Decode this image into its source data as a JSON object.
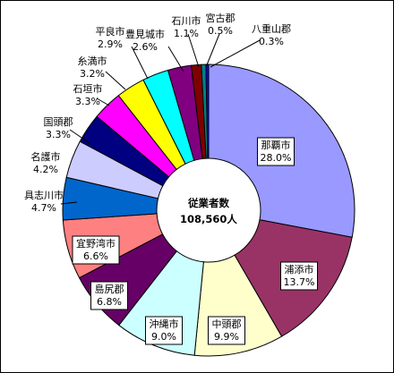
{
  "chart_data": {
    "type": "pie",
    "donut": true,
    "center_label": {
      "line1": "従業者数",
      "line2": "108,560人"
    },
    "slices": [
      {
        "name": "那覇市",
        "value": 28.0,
        "label": "28.0%",
        "color": "#9999ff"
      },
      {
        "name": "浦添市",
        "value": 13.7,
        "label": "13.7%",
        "color": "#993366"
      },
      {
        "name": "中頭郡",
        "value": 9.9,
        "label": "9.9%",
        "color": "#ffffcc"
      },
      {
        "name": "沖縄市",
        "value": 9.0,
        "label": "9.0%",
        "color": "#ccffff"
      },
      {
        "name": "島尻郡",
        "value": 6.8,
        "label": "6.8%",
        "color": "#660066"
      },
      {
        "name": "宜野湾市",
        "value": 6.6,
        "label": "6.6%",
        "color": "#ff8080"
      },
      {
        "name": "具志川市",
        "value": 4.7,
        "label": "4.7%",
        "color": "#0066cc"
      },
      {
        "name": "名護市",
        "value": 4.2,
        "label": "4.2%",
        "color": "#ccccff"
      },
      {
        "name": "国頭郡",
        "value": 3.3,
        "label": "3.3%",
        "color": "#000080"
      },
      {
        "name": "石垣市",
        "value": 3.3,
        "label": "3.3%",
        "color": "#ff00ff"
      },
      {
        "name": "糸満市",
        "value": 3.2,
        "label": "3.2%",
        "color": "#ffff00"
      },
      {
        "name": "平良市",
        "value": 2.9,
        "label": "2.9%",
        "color": "#00ffff"
      },
      {
        "name": "豊見城市",
        "value": 2.6,
        "label": "2.6%",
        "color": "#800080"
      },
      {
        "name": "石川市",
        "value": 1.1,
        "label": "1.1%",
        "color": "#800000"
      },
      {
        "name": "宮古郡",
        "value": 0.5,
        "label": "0.5%",
        "color": "#008080"
      },
      {
        "name": "八重山郡",
        "value": 0.3,
        "label": "0.3%",
        "color": "#0000ff"
      }
    ]
  }
}
